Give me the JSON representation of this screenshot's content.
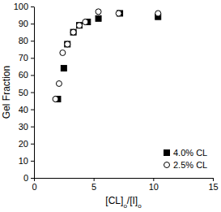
{
  "chart_data": {
    "type": "scatter",
    "x_label": "[CL]o/[I]o",
    "y_label": "Gel Fraction",
    "series": [
      {
        "name": "4.0% CL",
        "color": "#000000",
        "marker": "square",
        "x": [
          2.0,
          2.5,
          2.8,
          3.3,
          3.8,
          4.5,
          5.4,
          7.2,
          10.4
        ],
        "values": [
          46,
          64,
          78,
          85,
          89,
          91,
          93,
          96,
          94
        ]
      },
      {
        "name": "2.5% CL",
        "color": "#000000",
        "marker": "circle-open",
        "x": [
          1.8,
          2.1,
          2.4,
          2.8,
          3.3,
          3.8,
          4.3,
          5.4,
          7.1,
          10.4
        ],
        "values": [
          46,
          55,
          73,
          78,
          85,
          89,
          91,
          97,
          96,
          96
        ]
      }
    ],
    "xlim": [
      0,
      15
    ],
    "xticks": [
      0,
      5,
      10,
      15
    ],
    "ylim": [
      0,
      100
    ],
    "yticks": [
      0,
      10,
      20,
      30,
      40,
      50,
      60,
      70,
      80,
      90,
      100
    ],
    "grid": false,
    "legend": "lower right"
  }
}
